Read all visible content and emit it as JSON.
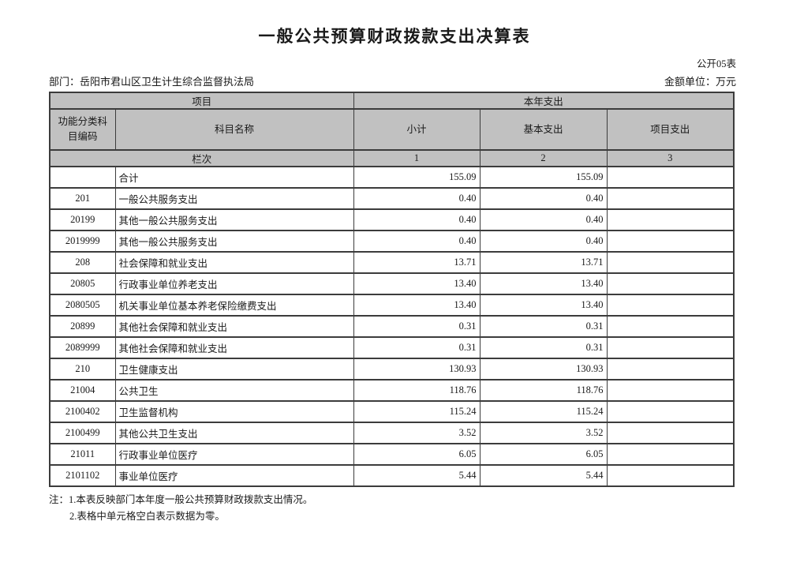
{
  "page": {
    "title": "一般公共预算财政拨款支出决算表",
    "table_code": "公开05表",
    "department": "部门：岳阳市君山区卫生计生综合监督执法局",
    "unit": "金额单位：万元"
  },
  "table": {
    "header": {
      "project_group": "项目",
      "current_year_group": "本年支出",
      "code": "功能分类科目编码",
      "subject_name": "科目名称",
      "subtotal": "小计",
      "basic_expense": "基本支出",
      "project_expense": "项目支出",
      "lan_ci": "栏次",
      "col1": "1",
      "col2": "2",
      "col3": "3"
    },
    "rows": [
      {
        "code": "",
        "name": "合计",
        "subtotal": "155.09",
        "basic": "155.09",
        "project": ""
      },
      {
        "code": "201",
        "name": "一般公共服务支出",
        "subtotal": "0.40",
        "basic": "0.40",
        "project": ""
      },
      {
        "code": "20199",
        "name": "其他一般公共服务支出",
        "subtotal": "0.40",
        "basic": "0.40",
        "project": ""
      },
      {
        "code": "2019999",
        "name": "其他一般公共服务支出",
        "subtotal": "0.40",
        "basic": "0.40",
        "project": ""
      },
      {
        "code": "208",
        "name": "社会保障和就业支出",
        "subtotal": "13.71",
        "basic": "13.71",
        "project": ""
      },
      {
        "code": "20805",
        "name": "行政事业单位养老支出",
        "subtotal": "13.40",
        "basic": "13.40",
        "project": ""
      },
      {
        "code": "2080505",
        "name": "机关事业单位基本养老保险缴费支出",
        "subtotal": "13.40",
        "basic": "13.40",
        "project": ""
      },
      {
        "code": "20899",
        "name": "其他社会保障和就业支出",
        "subtotal": "0.31",
        "basic": "0.31",
        "project": ""
      },
      {
        "code": "2089999",
        "name": "其他社会保障和就业支出",
        "subtotal": "0.31",
        "basic": "0.31",
        "project": ""
      },
      {
        "code": "210",
        "name": "卫生健康支出",
        "subtotal": "130.93",
        "basic": "130.93",
        "project": ""
      },
      {
        "code": "21004",
        "name": "公共卫生",
        "subtotal": "118.76",
        "basic": "118.76",
        "project": ""
      },
      {
        "code": "2100402",
        "name": "卫生监督机构",
        "subtotal": "115.24",
        "basic": "115.24",
        "project": ""
      },
      {
        "code": "2100499",
        "name": "其他公共卫生支出",
        "subtotal": "3.52",
        "basic": "3.52",
        "project": ""
      },
      {
        "code": "21011",
        "name": "行政事业单位医疗",
        "subtotal": "6.05",
        "basic": "6.05",
        "project": ""
      },
      {
        "code": "2101102",
        "name": "事业单位医疗",
        "subtotal": "5.44",
        "basic": "5.44",
        "project": ""
      }
    ]
  },
  "notes": {
    "line1": "注：1.本表反映部门本年度一般公共预算财政拨款支出情况。",
    "line2": "2.表格中单元格空白表示数据为零。"
  }
}
